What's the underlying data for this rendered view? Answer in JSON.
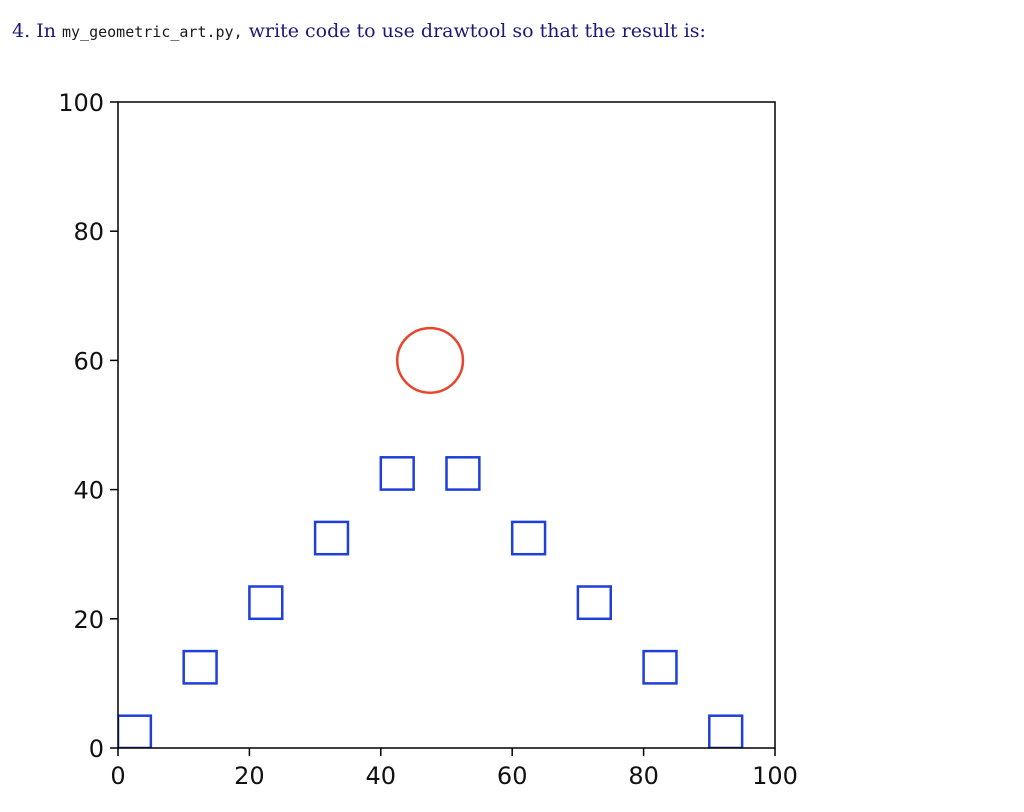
{
  "question": {
    "number": "4.",
    "prefix": "In",
    "filename": "my_geometric_art.py,",
    "suffix": "write code to use drawtool so that the result is:"
  },
  "chart_data": {
    "type": "scatter",
    "title": "",
    "xlabel": "",
    "ylabel": "",
    "xlim": [
      0,
      100
    ],
    "ylim": [
      0,
      100
    ],
    "xticks": [
      0,
      20,
      40,
      60,
      80,
      100
    ],
    "yticks": [
      0,
      20,
      40,
      60,
      80,
      100
    ],
    "grid": false,
    "series": [
      {
        "marker": "square",
        "color": "#1f3fd9",
        "size": 5,
        "points": [
          [
            0,
            0
          ],
          [
            10,
            10
          ],
          [
            20,
            20
          ],
          [
            30,
            30
          ],
          [
            40,
            40
          ],
          [
            50,
            40
          ],
          [
            60,
            30
          ],
          [
            70,
            20
          ],
          [
            80,
            10
          ],
          [
            90,
            0
          ]
        ]
      },
      {
        "marker": "circle",
        "color": "#e8452c",
        "radius": 5,
        "points": [
          [
            47.5,
            60
          ]
        ]
      }
    ]
  }
}
